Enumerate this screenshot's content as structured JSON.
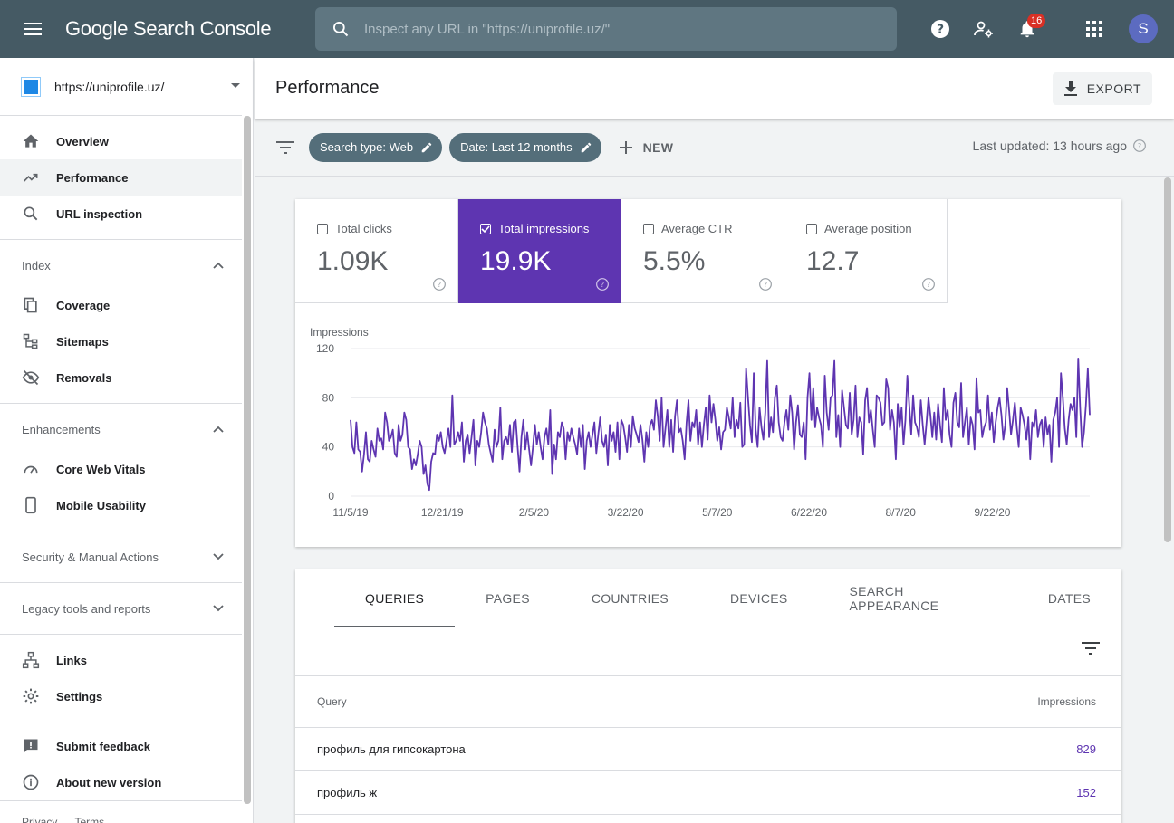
{
  "app": {
    "logo": "Google Search Console"
  },
  "search": {
    "placeholder": "Inspect any URL in \"https://uniprofile.uz/\""
  },
  "header": {
    "notification_count": "16",
    "avatar_letter": "S"
  },
  "property": {
    "url": "https://uniprofile.uz/"
  },
  "sidebar": {
    "top_items": [
      {
        "label": "Overview",
        "icon": "home-icon"
      },
      {
        "label": "Performance",
        "icon": "trending-up-icon",
        "active": true
      },
      {
        "label": "URL inspection",
        "icon": "search-icon"
      }
    ],
    "index": {
      "title": "Index",
      "items": [
        {
          "label": "Coverage",
          "icon": "coverage-icon"
        },
        {
          "label": "Sitemaps",
          "icon": "sitemap-icon"
        },
        {
          "label": "Removals",
          "icon": "eye-off-icon"
        }
      ]
    },
    "enhancements": {
      "title": "Enhancements",
      "items": [
        {
          "label": "Core Web Vitals",
          "icon": "speed-icon"
        },
        {
          "label": "Mobile Usability",
          "icon": "phone-icon"
        }
      ]
    },
    "security": {
      "title": "Security & Manual Actions"
    },
    "legacy": {
      "title": "Legacy tools and reports"
    },
    "bottom_items": [
      {
        "label": "Links",
        "icon": "links-icon"
      },
      {
        "label": "Settings",
        "icon": "gear-icon"
      }
    ],
    "footer_items": [
      {
        "label": "Submit feedback",
        "icon": "feedback-icon"
      },
      {
        "label": "About new version",
        "icon": "info-icon"
      }
    ],
    "legal": {
      "privacy": "Privacy",
      "terms": "Terms"
    }
  },
  "page": {
    "title": "Performance",
    "export_label": "EXPORT"
  },
  "filters": {
    "chips": [
      "Search type: Web",
      "Date: Last 12 months"
    ],
    "new_label": "NEW",
    "last_updated": "Last updated: 13 hours ago"
  },
  "metrics": [
    {
      "label": "Total clicks",
      "value": "1.09K",
      "checked": false
    },
    {
      "label": "Total impressions",
      "value": "19.9K",
      "checked": true
    },
    {
      "label": "Average CTR",
      "value": "5.5%",
      "checked": false
    },
    {
      "label": "Average position",
      "value": "12.7",
      "checked": false
    }
  ],
  "chart_data": {
    "type": "line",
    "ylabel": "Impressions",
    "ylim": [
      0,
      120
    ],
    "yticks": [
      0,
      40,
      80,
      120
    ],
    "x_ticks": [
      "11/5/19",
      "12/21/19",
      "2/5/20",
      "3/22/20",
      "5/7/20",
      "6/22/20",
      "8/7/20",
      "9/22/20"
    ],
    "grid": true,
    "color": "#5e35b1",
    "series": [
      {
        "name": "",
        "values": [
          62,
          40,
          35,
          60,
          38,
          36,
          20,
          34,
          52,
          30,
          28,
          45,
          38,
          32,
          55,
          45,
          47,
          38,
          68,
          60,
          45,
          48,
          54,
          35,
          32,
          58,
          45,
          50,
          68,
          62,
          40,
          38,
          22,
          30,
          25,
          34,
          45,
          40,
          18,
          25,
          10,
          5,
          28,
          35,
          34,
          50,
          45,
          52,
          40,
          35,
          45,
          55,
          40,
          82,
          42,
          45,
          52,
          45,
          60,
          28,
          45,
          50,
          35,
          48,
          62,
          25,
          45,
          40,
          52,
          68,
          60,
          55,
          42,
          35,
          28,
          54,
          40,
          45,
          72,
          30,
          45,
          48,
          42,
          58,
          36,
          60,
          62,
          40,
          20,
          48,
          62,
          38,
          52,
          38,
          25,
          40,
          58,
          42,
          52,
          40,
          30,
          48,
          55,
          42,
          70,
          18,
          42,
          30,
          52,
          48,
          60,
          55,
          30,
          52,
          45,
          55,
          48,
          42,
          34,
          55,
          40,
          58,
          22,
          45,
          52,
          40,
          50,
          60,
          35,
          50,
          64,
          45,
          40,
          50,
          25,
          58,
          45,
          52,
          36,
          60,
          30,
          62,
          58,
          48,
          36,
          58,
          40,
          65,
          55,
          50,
          44,
          58,
          46,
          28,
          52,
          40,
          58,
          62,
          54,
          78,
          65,
          45,
          80,
          40,
          55,
          70,
          40,
          62,
          36,
          65,
          78,
          52,
          55,
          45,
          30,
          60,
          78,
          45,
          60,
          56,
          70,
          42,
          60,
          40,
          58,
          72,
          46,
          82,
          60,
          75,
          62,
          45,
          56,
          38,
          52,
          54,
          72,
          64,
          55,
          80,
          48,
          62,
          55,
          76,
          40,
          42,
          104,
          80,
          58,
          44,
          100,
          54,
          40,
          72,
          56,
          46,
          68,
          110,
          48,
          64,
          52,
          80,
          90,
          60,
          48,
          45,
          60,
          70,
          54,
          82,
          68,
          38,
          60,
          74,
          50,
          48,
          60,
          30,
          80,
          100,
          62,
          88,
          56,
          72,
          64,
          58,
          40,
          98,
          68,
          54,
          80,
          82,
          110,
          48,
          66,
          40,
          86,
          72,
          58,
          55,
          84,
          50,
          62,
          90,
          48,
          64,
          60,
          34,
          78,
          88,
          60,
          70,
          54,
          40,
          82,
          80,
          76,
          58,
          60,
          95,
          88,
          54,
          70,
          60,
          30,
          75,
          56,
          72,
          42,
          62,
          98,
          74,
          50,
          82,
          60,
          56,
          48,
          78,
          58,
          42,
          60,
          80,
          66,
          48,
          68,
          46,
          75,
          58,
          44,
          88,
          62,
          70,
          50,
          40,
          76,
          84,
          60,
          56,
          92,
          48,
          60,
          72,
          42,
          64,
          58,
          38,
          96,
          68,
          70,
          48,
          56,
          60,
          82,
          54,
          68,
          44,
          60,
          72,
          80,
          66,
          46,
          58,
          88,
          70,
          50,
          62,
          76,
          56,
          40,
          72,
          66,
          58,
          46,
          64,
          30,
          60,
          56,
          70,
          48,
          58,
          62,
          40,
          64,
          50,
          58,
          28,
          62,
          68,
          80,
          40,
          100,
          80,
          55,
          42,
          62,
          75,
          70,
          80,
          48,
          112,
          72,
          40,
          52,
          74,
          104,
          66
        ]
      }
    ]
  },
  "tabs": [
    "QUERIES",
    "PAGES",
    "COUNTRIES",
    "DEVICES",
    "SEARCH APPEARANCE",
    "DATES"
  ],
  "table": {
    "columns": [
      "Query",
      "Impressions"
    ],
    "rows": [
      {
        "query": "профиль для гипсокартона",
        "impressions": "829"
      },
      {
        "query": "профиль ж",
        "impressions": "152"
      }
    ]
  }
}
